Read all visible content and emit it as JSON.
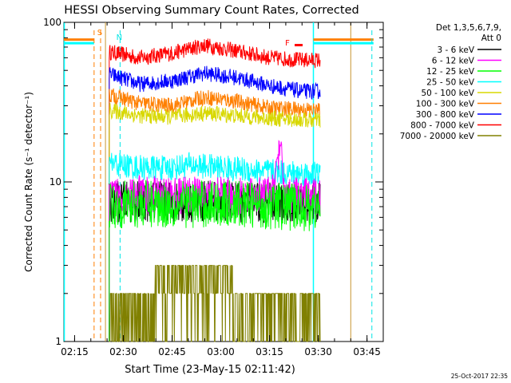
{
  "chart_data": {
    "type": "line",
    "title": "HESSI Observing Summary Count Rates, Corrected",
    "xlabel": "Start Time (23-May-15 02:11:42)",
    "ylabel": "Corrected Count Rate (s⁻¹ detector⁻¹)",
    "ylog": true,
    "ylim": [
      1,
      100
    ],
    "xlim": [
      "02:11:42",
      "03:50:00"
    ],
    "xticks": [
      "02:15",
      "02:30",
      "02:45",
      "03:00",
      "03:15",
      "03:30",
      "03:45"
    ],
    "yticks": [
      "1",
      "10",
      "100"
    ],
    "timestamp": "25-Oct-2017 22:35",
    "legend": {
      "header": [
        "Det 1,3,5,6,7,9,",
        "Att 0"
      ],
      "position": "right"
    },
    "markers": [
      {
        "label": "S",
        "time": "02:23:00",
        "color": "#ff7f00"
      },
      {
        "label": "N",
        "time": "02:29:00",
        "color": "#00e5e5"
      },
      {
        "label": "F",
        "time": "03:21:30",
        "color": "#ff0000"
      }
    ],
    "series": [
      {
        "name": "3 - 6 keV",
        "color": "#000000",
        "values": [
          [
            "02:26",
            7.5
          ],
          [
            "02:35",
            7.5
          ],
          [
            "02:45",
            7.6
          ],
          [
            "03:00",
            7.5
          ],
          [
            "03:10",
            7.4
          ],
          [
            "03:20",
            7.5
          ],
          [
            "03:30",
            7.3
          ]
        ]
      },
      {
        "name": "6 - 12 keV",
        "color": "#ff00ff",
        "values": [
          [
            "02:26",
            8.2
          ],
          [
            "02:35",
            8.3
          ],
          [
            "02:45",
            8.3
          ],
          [
            "03:00",
            8.2
          ],
          [
            "03:10",
            8.0
          ],
          [
            "03:16",
            8.5
          ],
          [
            "03:18",
            16
          ],
          [
            "03:20",
            8.2
          ],
          [
            "03:30",
            8.0
          ]
        ]
      },
      {
        "name": "12 - 25 keV",
        "color": "#00ff00",
        "values": [
          [
            "02:26",
            7.2
          ],
          [
            "02:35",
            7.3
          ],
          [
            "02:45",
            7.2
          ],
          [
            "03:00",
            7.3
          ],
          [
            "03:10",
            7.2
          ],
          [
            "03:20",
            7.0
          ],
          [
            "03:30",
            6.9
          ]
        ]
      },
      {
        "name": "25 - 50 keV",
        "color": "#00ffff",
        "values": [
          [
            "02:26",
            13
          ],
          [
            "02:35",
            12.3
          ],
          [
            "02:45",
            12.2
          ],
          [
            "02:50",
            12.8
          ],
          [
            "03:00",
            12.3
          ],
          [
            "03:10",
            11.8
          ],
          [
            "03:20",
            11.4
          ],
          [
            "03:30",
            11.2
          ]
        ]
      },
      {
        "name": "50 - 100 keV",
        "color": "#d8d800",
        "values": [
          [
            "02:26",
            28
          ],
          [
            "02:35",
            26
          ],
          [
            "02:45",
            25.5
          ],
          [
            "02:55",
            27
          ],
          [
            "03:05",
            26
          ],
          [
            "03:15",
            25
          ],
          [
            "03:25",
            24.5
          ],
          [
            "03:30",
            24.3
          ]
        ]
      },
      {
        "name": "100 - 300 keV",
        "color": "#ff7f00",
        "values": [
          [
            "02:26",
            35
          ],
          [
            "02:35",
            31
          ],
          [
            "02:45",
            30
          ],
          [
            "02:55",
            34
          ],
          [
            "03:05",
            32
          ],
          [
            "03:15",
            29
          ],
          [
            "03:25",
            28.5
          ],
          [
            "03:30",
            28
          ]
        ]
      },
      {
        "name": "300 - 800 keV",
        "color": "#0000ff",
        "values": [
          [
            "02:26",
            47
          ],
          [
            "02:35",
            41
          ],
          [
            "02:45",
            43
          ],
          [
            "02:55",
            48
          ],
          [
            "03:05",
            45
          ],
          [
            "03:15",
            40
          ],
          [
            "03:25",
            37
          ],
          [
            "03:30",
            37
          ]
        ]
      },
      {
        "name": "800 - 7000 keV",
        "color": "#ff0000",
        "values": [
          [
            "02:26",
            65
          ],
          [
            "02:35",
            60
          ],
          [
            "02:45",
            64
          ],
          [
            "02:55",
            72
          ],
          [
            "03:05",
            66
          ],
          [
            "03:15",
            60
          ],
          [
            "03:25",
            58
          ],
          [
            "03:30",
            58
          ]
        ]
      },
      {
        "name": "7000 - 20000 keV",
        "color": "#808000",
        "values": [
          [
            "02:26",
            2.0
          ],
          [
            "02:35",
            2.0
          ],
          [
            "02:47",
            2.5
          ],
          [
            "03:00",
            2.5
          ],
          [
            "03:06",
            2.0
          ],
          [
            "03:20",
            2.0
          ],
          [
            "03:30",
            2.0
          ]
        ]
      }
    ]
  }
}
